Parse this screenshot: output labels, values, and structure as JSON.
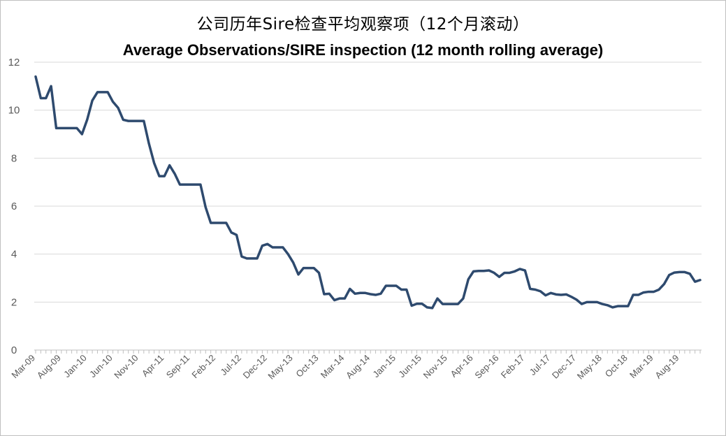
{
  "chart_data": {
    "type": "line",
    "title": "公司历年Sire检查平均观察项（12个月滚动）",
    "subtitle": "Average Observations/SIRE inspection (12 month rolling average)",
    "xlabel": "",
    "ylabel": "",
    "ylim": [
      0,
      12
    ],
    "yticks": [
      0,
      2,
      4,
      6,
      8,
      10,
      12
    ],
    "grid": true,
    "legend": "none",
    "line_color": "#2e4a6e",
    "x_tick_labels": [
      "Mar-09",
      "Aug-09",
      "Jan-10",
      "Jun-10",
      "Nov-10",
      "Apr-11",
      "Sep-11",
      "Feb-12",
      "Jul-12",
      "Dec-12",
      "May-13",
      "Oct-13",
      "Mar-14",
      "Aug-14",
      "Jan-15",
      "Jun-15",
      "Nov-15",
      "Apr-16",
      "Sep-16",
      "Feb-17",
      "Jul-17",
      "Dec-17",
      "May-18",
      "Oct-18",
      "Mar-19",
      "Aug-19"
    ],
    "x_start": "2009-03",
    "values": [
      11.4,
      10.5,
      10.5,
      11.0,
      9.25,
      9.25,
      9.25,
      9.25,
      9.25,
      9.0,
      9.6,
      10.4,
      10.75,
      10.75,
      10.75,
      10.35,
      10.1,
      9.6,
      9.55,
      9.55,
      9.55,
      9.55,
      8.6,
      7.8,
      7.25,
      7.25,
      7.7,
      7.35,
      6.9,
      6.9,
      6.9,
      6.9,
      6.9,
      5.95,
      5.3,
      5.3,
      5.3,
      5.3,
      4.9,
      4.8,
      3.9,
      3.82,
      3.82,
      3.82,
      4.35,
      4.42,
      4.28,
      4.28,
      4.28,
      4.0,
      3.65,
      3.15,
      3.42,
      3.42,
      3.42,
      3.22,
      2.33,
      2.35,
      2.08,
      2.15,
      2.15,
      2.55,
      2.35,
      2.38,
      2.38,
      2.33,
      2.3,
      2.35,
      2.68,
      2.68,
      2.68,
      2.52,
      2.52,
      1.85,
      1.93,
      1.93,
      1.78,
      1.75,
      2.15,
      1.92,
      1.92,
      1.92,
      1.92,
      2.15,
      2.95,
      3.28,
      3.3,
      3.3,
      3.32,
      3.22,
      3.05,
      3.22,
      3.22,
      3.28,
      3.38,
      3.32,
      2.55,
      2.52,
      2.45,
      2.28,
      2.38,
      2.32,
      2.3,
      2.32,
      2.22,
      2.1,
      1.92,
      2.0,
      2.0,
      2.0,
      1.92,
      1.87,
      1.78,
      1.83,
      1.83,
      1.83,
      2.3,
      2.3,
      2.4,
      2.43,
      2.43,
      2.52,
      2.75,
      3.13,
      3.23,
      3.25,
      3.25,
      3.18,
      2.85,
      2.92
    ]
  }
}
